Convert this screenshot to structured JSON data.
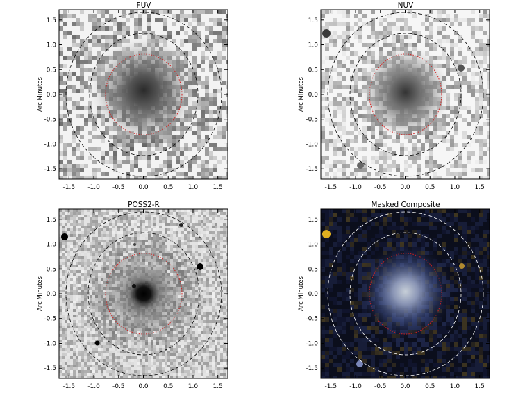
{
  "figure": {
    "panels": [
      {
        "title": "FUV",
        "ylabel": "Arc Minutes",
        "image": "grayscale noise map with central diffuse galaxy",
        "xticks": [
          "-1.5",
          "-1.0",
          "-0.5",
          "0.0",
          "0.5",
          "1.0",
          "1.5"
        ],
        "yticks": [
          "1.5",
          "1.0",
          "0.5",
          "0.0",
          "-0.5",
          "-1.0",
          "-1.5"
        ],
        "outer_ellipse_color": "#000000",
        "inner_ellipse_color": "#d22020"
      },
      {
        "title": "NUV",
        "ylabel": "Arc Minutes",
        "image": "grayscale noise map with central diffuse galaxy",
        "xticks": [
          "-1.5",
          "-1.0",
          "-0.5",
          "0.0",
          "0.5",
          "1.0",
          "1.5"
        ],
        "yticks": [
          "1.5",
          "1.0",
          "0.5",
          "0.0",
          "-0.5",
          "-1.0",
          "-1.5"
        ],
        "outer_ellipse_color": "#000000",
        "inner_ellipse_color": "#d22020"
      },
      {
        "title": "POSS2-R",
        "ylabel": "Arc Minutes",
        "image": "grayscale optical field with bright compact galaxy and stars",
        "xticks": [
          "-1.5",
          "-1.0",
          "-0.5",
          "0.0",
          "0.5",
          "1.0",
          "1.5"
        ],
        "yticks": [
          "1.5",
          "1.0",
          "0.5",
          "0.0",
          "-0.5",
          "-1.0",
          "-1.5"
        ],
        "outer_ellipse_color": "#000000",
        "inner_ellipse_color": "#d22020"
      },
      {
        "title": "Masked Composite",
        "ylabel": "Arc Minutes",
        "image": "dark blue-yellow color composite with central bluish galaxy",
        "xticks": [
          "-1.5",
          "-1.0",
          "-0.5",
          "0.0",
          "0.5",
          "1.0",
          "1.5"
        ],
        "yticks": [
          "1.5",
          "1.0",
          "0.5",
          "0.0",
          "-0.5",
          "-1.0",
          "-1.5"
        ],
        "outer_ellipse_color": "#ffffff",
        "inner_ellipse_color": "#d22020"
      }
    ]
  }
}
